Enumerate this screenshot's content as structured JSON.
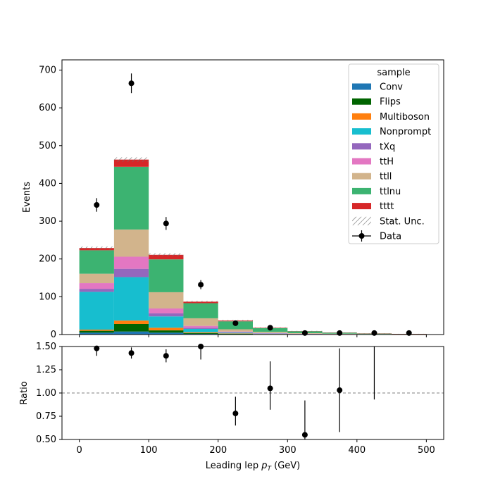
{
  "chart_data": [
    {
      "type": "bar",
      "stacked": true,
      "histogram": true,
      "bin_edges": [
        0,
        50,
        100,
        150,
        200,
        250,
        300,
        350,
        400,
        450,
        500
      ],
      "ylabel": "Events",
      "ylim": [
        0,
        727
      ],
      "xlim": [
        -25,
        525
      ],
      "xticks": [
        0,
        100,
        200,
        300,
        400,
        500
      ],
      "yticks": [
        0,
        100,
        200,
        300,
        400,
        500,
        600,
        700
      ],
      "legend": {
        "title": "sample",
        "placement": "top-right",
        "stat_unc_label": "Stat. Unc.",
        "data_label": "Data"
      },
      "series": [
        {
          "name": "Conv",
          "color": "#1f77b4",
          "values": [
            5,
            8,
            5,
            2,
            1,
            0.5,
            0.3,
            0.2,
            0.1,
            0.1
          ]
        },
        {
          "name": "Flips",
          "color": "#006400",
          "values": [
            5,
            20,
            6,
            2,
            1,
            0.5,
            0.3,
            0.2,
            0.1,
            0.1
          ]
        },
        {
          "name": "Multiboson",
          "color": "#ff7f0e",
          "values": [
            3,
            9,
            7,
            2,
            1,
            0.5,
            0.3,
            0.2,
            0.1,
            0.1
          ]
        },
        {
          "name": "Nonprompt",
          "color": "#17becf",
          "values": [
            100,
            115,
            30,
            9,
            2,
            1,
            0.5,
            0.3,
            0.2,
            0.1
          ]
        },
        {
          "name": "tXq",
          "color": "#9467bd",
          "values": [
            8,
            22,
            8,
            3,
            1,
            0.5,
            0.3,
            0.2,
            0.1,
            0.1
          ]
        },
        {
          "name": "ttH",
          "color": "#e377c2",
          "values": [
            15,
            32,
            13,
            5,
            2,
            1,
            0.5,
            0.3,
            0.2,
            0.1
          ]
        },
        {
          "name": "ttll",
          "color": "#d2b48c",
          "values": [
            25,
            72,
            43,
            20,
            6,
            3,
            1.5,
            1,
            0.5,
            0.3
          ]
        },
        {
          "name": "ttlnu",
          "color": "#3cb371",
          "values": [
            62,
            166,
            87,
            40,
            21,
            10,
            5,
            2.5,
            1.5,
            0.8
          ]
        },
        {
          "name": "tttt",
          "color": "#d62728",
          "values": [
            6,
            19,
            12,
            4,
            2,
            1,
            0.5,
            0.3,
            0.2,
            0.1
          ]
        }
      ],
      "stat_unc": [
        4,
        6,
        4,
        2,
        1.5,
        1,
        0.6,
        0.4,
        0.3,
        0.2
      ],
      "data": {
        "x": [
          25,
          75,
          125,
          175,
          225,
          275,
          325,
          375,
          425,
          475
        ],
        "y": [
          343,
          665,
          294,
          132,
          30,
          18,
          4,
          4,
          4,
          4
        ],
        "err": [
          18,
          26,
          17,
          12,
          5,
          4,
          2,
          2,
          2,
          2
        ]
      }
    },
    {
      "type": "scatter",
      "ylabel": "Ratio",
      "xlabel": "Leading lep $p_T$ (GeV)",
      "xlabel_main": "Leading lep ",
      "xlabel_sym": "p",
      "xlabel_sub": "T",
      "xlabel_unit": " (GeV)",
      "ylim": [
        0.5,
        1.5
      ],
      "xlim": [
        -25,
        525
      ],
      "xticks": [
        0,
        100,
        200,
        300,
        400,
        500
      ],
      "yticks": [
        0.5,
        0.75,
        1.0,
        1.25,
        1.5
      ],
      "ytick_labels": [
        "0.50",
        "0.75",
        "1.00",
        "1.25",
        "1.50"
      ],
      "reference_line": 1.0,
      "points": {
        "x": [
          25,
          75,
          125,
          175,
          225,
          275,
          325,
          375,
          425
        ],
        "y": [
          1.48,
          1.43,
          1.4,
          1.5,
          0.78,
          1.05,
          0.55,
          1.03,
          1.6
        ],
        "err_lo": [
          0.08,
          0.06,
          0.07,
          0.14,
          0.13,
          0.23,
          0.37,
          0.45,
          0.67
        ],
        "err_hi": [
          0.08,
          0.06,
          0.07,
          0.14,
          0.18,
          0.29,
          0.37,
          0.45,
          0.67
        ]
      }
    }
  ]
}
